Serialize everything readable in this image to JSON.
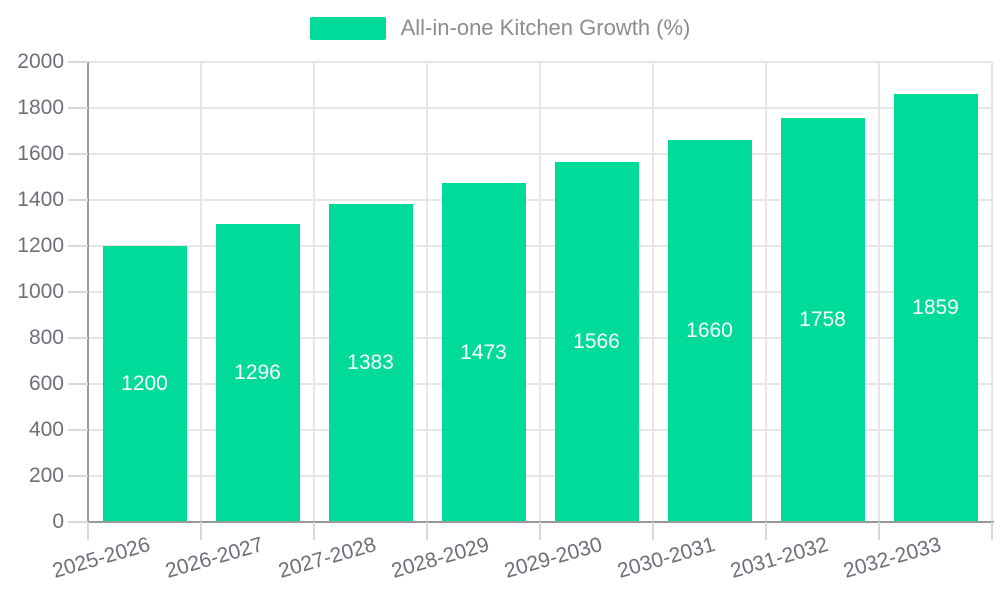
{
  "legend": {
    "label": "All-in-one Kitchen Growth (%)"
  },
  "chart_data": {
    "type": "bar",
    "title": "",
    "xlabel": "",
    "ylabel": "",
    "categories": [
      "2025-2026",
      "2026-2027",
      "2027-2028",
      "2028-2029",
      "2029-2030",
      "2030-2031",
      "2031-2032",
      "2032-2033"
    ],
    "series": [
      {
        "name": "All-in-one Kitchen Growth (%)",
        "values": [
          1200,
          1296,
          1383,
          1473,
          1566,
          1660,
          1758,
          1859
        ]
      }
    ],
    "value_labels_shown": true,
    "ylim": [
      0,
      2000
    ],
    "yticks": [
      0,
      200,
      400,
      600,
      800,
      1000,
      1200,
      1400,
      1600,
      1800,
      2000
    ],
    "grid": true,
    "legend_position": "top-center",
    "x_label_rotation_deg": -16,
    "colors": {
      "bar": "#00db9a",
      "value_label": "#ffffff",
      "axis_line": "#999999",
      "grid_line": "#e6e6e6",
      "tick_line": "#d9d9d9",
      "axis_label": "#6e7079",
      "legend_text": "#8a8d91",
      "background": "#ffffff"
    }
  }
}
